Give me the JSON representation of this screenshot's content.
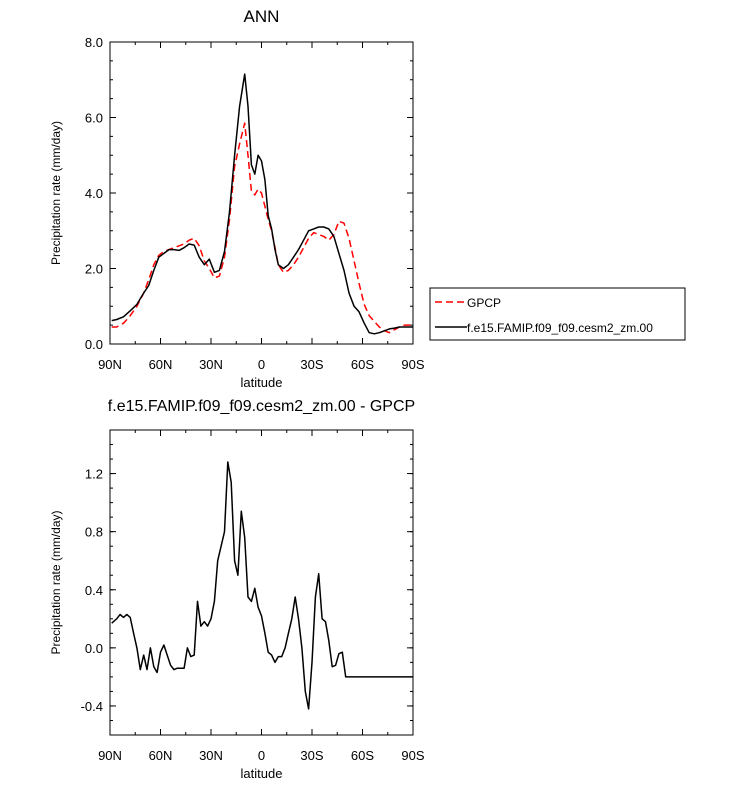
{
  "chart_data": [
    {
      "type": "line",
      "title": "ANN",
      "xlabel": "latitude",
      "ylabel": "Precipitation rate (mm/day)",
      "xlim": [
        90,
        -90
      ],
      "ylim": [
        0,
        8
      ],
      "x_ticks": [
        {
          "value": 90,
          "label": "90N"
        },
        {
          "value": 60,
          "label": "60N"
        },
        {
          "value": 30,
          "label": "30N"
        },
        {
          "value": 0,
          "label": "0"
        },
        {
          "value": -30,
          "label": "30S"
        },
        {
          "value": -60,
          "label": "60S"
        },
        {
          "value": -90,
          "label": "90S"
        }
      ],
      "y_ticks": [
        {
          "value": 0,
          "label": "0.0"
        },
        {
          "value": 2,
          "label": "2.0"
        },
        {
          "value": 4,
          "label": "4.0"
        },
        {
          "value": 6,
          "label": "6.0"
        },
        {
          "value": 8,
          "label": "8.0"
        }
      ],
      "legend_position": "right",
      "series": [
        {
          "name": "GPCP",
          "style": "dashed",
          "color": "#ff0000",
          "x": [
            89,
            86,
            82,
            78,
            74,
            70,
            67,
            64,
            61,
            58,
            55,
            52,
            49,
            46,
            43,
            40,
            37,
            34,
            31,
            28,
            25,
            22,
            19,
            16,
            13,
            10,
            8,
            6,
            4,
            2,
            0,
            -2,
            -4,
            -6,
            -8,
            -10,
            -13,
            -16,
            -19,
            -22,
            -25,
            -28,
            -31,
            -34,
            -37,
            -40,
            -43,
            -46,
            -49,
            -52,
            -55,
            -58,
            -61,
            -64,
            -67,
            -70,
            -73,
            -76,
            -79,
            -82,
            -85,
            -88,
            -90
          ],
          "y": [
            0.45,
            0.45,
            0.55,
            0.75,
            1.0,
            1.35,
            1.7,
            2.1,
            2.35,
            2.45,
            2.5,
            2.55,
            2.6,
            2.65,
            2.75,
            2.8,
            2.6,
            2.2,
            2.0,
            1.75,
            1.8,
            2.3,
            3.3,
            4.7,
            5.3,
            5.85,
            5.0,
            4.05,
            3.95,
            4.1,
            4.0,
            3.65,
            3.3,
            3.0,
            2.55,
            2.1,
            1.9,
            1.95,
            2.1,
            2.3,
            2.55,
            2.8,
            2.95,
            2.9,
            2.85,
            2.75,
            2.9,
            3.25,
            3.2,
            2.8,
            2.2,
            1.6,
            1.05,
            0.75,
            0.6,
            0.45,
            0.35,
            0.3,
            0.38,
            0.45,
            0.5,
            0.5,
            0.5
          ]
        },
        {
          "name": "f.e15.FAMIP.f09_f09.cesm2_zm.00",
          "style": "solid",
          "color": "#000000",
          "x": [
            89,
            86,
            82,
            78,
            74,
            70,
            67,
            64,
            61,
            58,
            55,
            52,
            49,
            46,
            43,
            40,
            37,
            34,
            31,
            28,
            25,
            22,
            19,
            16,
            13,
            10,
            8,
            6,
            4,
            2,
            0,
            -2,
            -4,
            -6,
            -8,
            -10,
            -13,
            -16,
            -19,
            -22,
            -25,
            -28,
            -31,
            -34,
            -37,
            -40,
            -43,
            -46,
            -49,
            -52,
            -55,
            -58,
            -61,
            -64,
            -67,
            -70,
            -73,
            -76,
            -79,
            -82,
            -85,
            -88,
            -90
          ],
          "y": [
            0.62,
            0.65,
            0.72,
            0.88,
            1.05,
            1.35,
            1.55,
            1.95,
            2.3,
            2.4,
            2.5,
            2.5,
            2.48,
            2.55,
            2.65,
            2.62,
            2.3,
            2.1,
            2.25,
            1.9,
            1.95,
            2.45,
            3.5,
            5.0,
            6.3,
            7.15,
            6.3,
            4.75,
            4.5,
            5.0,
            4.85,
            4.35,
            3.4,
            3.05,
            2.5,
            2.1,
            2.0,
            2.1,
            2.3,
            2.5,
            2.75,
            3.0,
            3.05,
            3.1,
            3.1,
            3.05,
            2.85,
            2.4,
            1.95,
            1.35,
            1.0,
            0.85,
            0.55,
            0.3,
            0.27,
            0.3,
            0.35,
            0.4,
            0.42,
            0.45,
            0.45,
            0.45,
            0.45
          ]
        }
      ]
    },
    {
      "type": "line",
      "title": "f.e15.FAMIP.f09_f09.cesm2_zm.00 - GPCP",
      "xlabel": "latitude",
      "ylabel": "Precipitation rate (mm/day)",
      "xlim": [
        90,
        -90
      ],
      "ylim": [
        -0.6,
        1.5
      ],
      "x_ticks": [
        {
          "value": 90,
          "label": "90N"
        },
        {
          "value": 60,
          "label": "60N"
        },
        {
          "value": 30,
          "label": "30N"
        },
        {
          "value": 0,
          "label": "0"
        },
        {
          "value": -30,
          "label": "30S"
        },
        {
          "value": -60,
          "label": "60S"
        },
        {
          "value": -90,
          "label": "90S"
        }
      ],
      "y_ticks": [
        {
          "value": -0.4,
          "label": "-0.4"
        },
        {
          "value": 0.0,
          "label": "0.0"
        },
        {
          "value": 0.4,
          "label": "0.4"
        },
        {
          "value": 0.8,
          "label": "0.8"
        },
        {
          "value": 1.2,
          "label": "1.2"
        }
      ],
      "series": [
        {
          "name": "f.e15.FAMIP.f09_f09.cesm2_zm.00 - GPCP",
          "style": "solid",
          "color": "#000000",
          "x": [
            89,
            86,
            84,
            82,
            80,
            78,
            76,
            74,
            72,
            70,
            68,
            66,
            64,
            62,
            60,
            58,
            56,
            54,
            52,
            50,
            48,
            46,
            44,
            42,
            40,
            38,
            36,
            34,
            32,
            30,
            28,
            26,
            24,
            22,
            20,
            18,
            16,
            14,
            12,
            10,
            8,
            6,
            4,
            2,
            0,
            -2,
            -4,
            -6,
            -8,
            -10,
            -12,
            -14,
            -16,
            -18,
            -20,
            -22,
            -24,
            -26,
            -28,
            -30,
            -32,
            -34,
            -36,
            -38,
            -40,
            -42,
            -44,
            -46,
            -48,
            -50,
            -52,
            -54,
            -56,
            -58,
            -60,
            -62,
            -64,
            -66,
            -68,
            -70,
            -72,
            -74,
            -76,
            -78,
            -80,
            -82,
            -84,
            -86,
            -88,
            -90
          ],
          "y": [
            0.17,
            0.2,
            0.23,
            0.21,
            0.23,
            0.21,
            0.1,
            0.0,
            -0.15,
            -0.05,
            -0.15,
            0.0,
            -0.13,
            -0.17,
            -0.03,
            0.02,
            -0.05,
            -0.12,
            -0.15,
            -0.14,
            -0.14,
            -0.14,
            0.0,
            -0.06,
            -0.05,
            0.32,
            0.15,
            0.18,
            0.15,
            0.2,
            0.32,
            0.6,
            0.7,
            0.8,
            1.28,
            1.14,
            0.6,
            0.5,
            0.94,
            0.76,
            0.35,
            0.32,
            0.41,
            0.28,
            0.22,
            0.1,
            -0.03,
            -0.05,
            -0.1,
            -0.06,
            -0.06,
            0.0,
            0.1,
            0.2,
            0.35,
            0.2,
            0.0,
            -0.3,
            -0.42,
            -0.1,
            0.35,
            0.51,
            0.2,
            0.18,
            0.05,
            -0.13,
            -0.12,
            -0.04,
            -0.03,
            -0.2,
            -0.2,
            -0.2,
            -0.2,
            -0.2,
            -0.2,
            -0.2,
            -0.2,
            -0.2,
            -0.2,
            -0.2,
            -0.2,
            -0.2,
            -0.2,
            -0.2,
            -0.2,
            -0.2,
            -0.2,
            -0.2,
            -0.2,
            -0.2
          ]
        }
      ]
    }
  ]
}
